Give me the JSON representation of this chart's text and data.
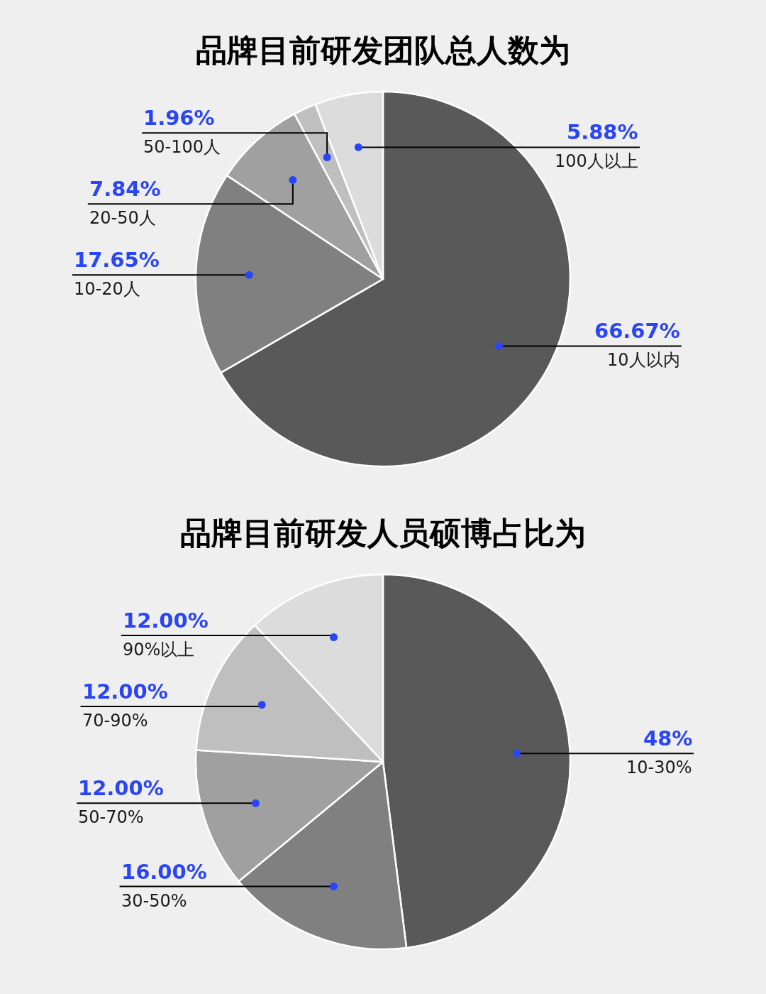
{
  "chart_data": [
    {
      "type": "pie",
      "title": "品牌目前研发团队总人数为",
      "categories": [
        "10人以内",
        "10-20人",
        "20-50人",
        "50-100人",
        "100人以上"
      ],
      "values": [
        66.67,
        17.65,
        7.84,
        1.96,
        5.88
      ],
      "colors": [
        "#595959",
        "#808080",
        "#a0a0a0",
        "#bfbfbf",
        "#dcdcdc"
      ],
      "value_labels": [
        "66.67%",
        "17.65%",
        "7.84%",
        "1.96%",
        "5.88%"
      ]
    },
    {
      "type": "pie",
      "title": "品牌目前研发人员硕博占比为",
      "categories": [
        "10-30%",
        "30-50%",
        "50-70%",
        "70-90%",
        "90%以上"
      ],
      "values": [
        48,
        16,
        12,
        12,
        12
      ],
      "colors": [
        "#595959",
        "#808080",
        "#a0a0a0",
        "#bfbfbf",
        "#dcdcdc"
      ],
      "value_labels": [
        "48%",
        "16.00%",
        "12.00%",
        "12.00%",
        "12.00%"
      ]
    }
  ]
}
